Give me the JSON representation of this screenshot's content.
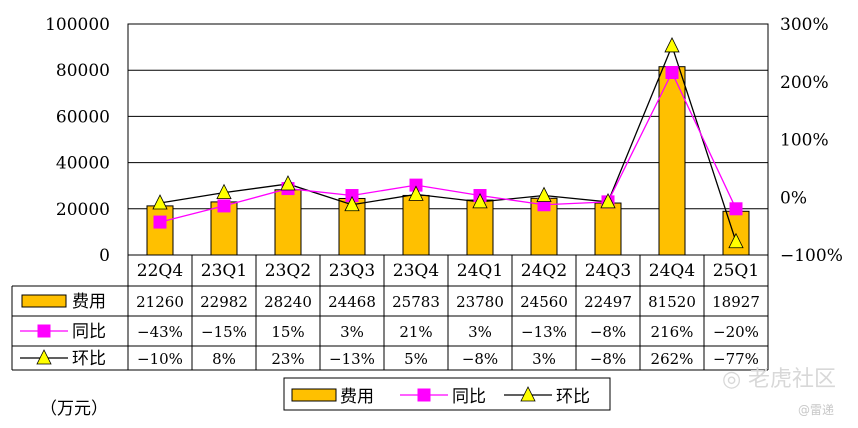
{
  "chart_data": {
    "type": "bar",
    "categories": [
      "22Q4",
      "23Q1",
      "23Q2",
      "23Q3",
      "23Q4",
      "24Q1",
      "24Q2",
      "24Q3",
      "24Q4",
      "25Q1"
    ],
    "series": [
      {
        "name": "费用",
        "type": "bar",
        "axis": "left",
        "color": "#FFC000",
        "values": [
          21260,
          22982,
          28240,
          24468,
          25783,
          23780,
          24560,
          22497,
          81520,
          18927
        ],
        "labels": [
          "21260",
          "22982",
          "28240",
          "24468",
          "25783",
          "23780",
          "24560",
          "22497",
          "81520",
          "18927"
        ]
      },
      {
        "name": "同比",
        "type": "line",
        "axis": "right",
        "color": "#FF00FF",
        "marker": "square",
        "values": [
          -43,
          -15,
          15,
          3,
          21,
          3,
          -13,
          -8,
          216,
          -20
        ],
        "labels": [
          "−43%",
          "−15%",
          "15%",
          "3%",
          "21%",
          "3%",
          "−13%",
          "−8%",
          "216%",
          "−20%"
        ]
      },
      {
        "name": "环比",
        "type": "line",
        "axis": "right",
        "color": "#000000",
        "marker": "triangle",
        "marker_fill": "#FFFF00",
        "values": [
          -10,
          8,
          23,
          -13,
          5,
          -8,
          3,
          -8,
          262,
          -77
        ],
        "labels": [
          "−10%",
          "8%",
          "23%",
          "−13%",
          "5%",
          "−8%",
          "3%",
          "−8%",
          "262%",
          "−77%"
        ]
      }
    ],
    "left_axis": {
      "ylim": [
        0,
        100000
      ],
      "ticks": [
        "0",
        "20000",
        "40000",
        "60000",
        "80000",
        "100000"
      ]
    },
    "right_axis": {
      "ylim": [
        -100,
        300
      ],
      "ticks": [
        "−100%",
        "0%",
        "100%",
        "200%",
        "300%"
      ]
    },
    "unit_label": "（万元）",
    "legend": {
      "position": "bottom",
      "items": [
        "费用",
        "同比",
        "环比"
      ]
    },
    "grid": true,
    "data_table": true
  },
  "watermark": {
    "text": "老虎社区",
    "sub": "@雷递"
  }
}
